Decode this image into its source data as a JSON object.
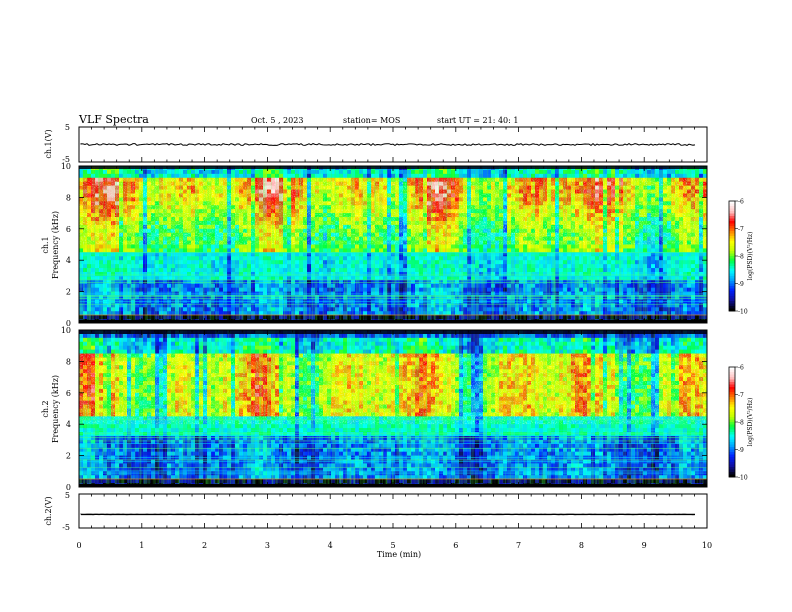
{
  "header": {
    "title": "VLF Spectra",
    "date": "Oct. 5 , 2023",
    "station": "station= MOS",
    "start": "start UT = 21: 40: 1"
  },
  "colors": {
    "colormap": [
      "#000000",
      "#1010a0",
      "#0020ff",
      "#00a0ff",
      "#00ffff",
      "#00ff40",
      "#c0ff00",
      "#ffff00",
      "#ff8000",
      "#ff0000",
      "#ffc0c0",
      "#ffffff"
    ],
    "trace": "#000000"
  },
  "chart_data": [
    {
      "type": "line",
      "ylabel": "ch.1(V)",
      "ylim": [
        -5,
        5
      ],
      "yticks": [
        "5",
        "-5"
      ],
      "xlim": [
        0,
        10
      ],
      "series": [
        {
          "values": [
            0,
            0
          ]
        }
      ]
    },
    {
      "type": "heatmap",
      "ylabel": "ch.1 Frequency (kHz)",
      "ylabel_line1": "ch.1",
      "ylabel_line2": "Frequency (kHz)",
      "ylim": [
        0,
        10
      ],
      "yticks": [
        "0",
        "2",
        "4",
        "6",
        "8",
        "10"
      ],
      "xlim": [
        0,
        10
      ],
      "colorbar": {
        "label": "log(PSD)(V²/Hz)",
        "range": [
          -10,
          -6
        ],
        "ticks": [
          "-6",
          "-7",
          "-8",
          "-9",
          "-10"
        ]
      }
    },
    {
      "type": "heatmap",
      "ylabel": "ch.2 Frequency (kHz)",
      "ylabel_line1": "ch.2",
      "ylabel_line2": "Frequency (kHz)",
      "ylim": [
        0,
        10
      ],
      "yticks": [
        "0",
        "2",
        "4",
        "6",
        "8",
        "10"
      ],
      "xlim": [
        0,
        10
      ],
      "colorbar": {
        "label": "log(PSD)(V²/Hz)",
        "range": [
          -10,
          -6
        ],
        "ticks": [
          "-6",
          "-7",
          "-8",
          "-9",
          "-10"
        ]
      }
    },
    {
      "type": "line",
      "ylabel": "ch.2(V)",
      "ylim": [
        -5,
        5
      ],
      "yticks": [
        "5",
        "-5"
      ],
      "xlim": [
        0,
        10
      ],
      "series": [
        {
          "values": [
            -1,
            -1
          ]
        }
      ]
    }
  ],
  "xaxis": {
    "label": "Time (min)",
    "ticks": [
      "0",
      "1",
      "2",
      "3",
      "4",
      "5",
      "6",
      "7",
      "8",
      "9",
      "10"
    ]
  }
}
